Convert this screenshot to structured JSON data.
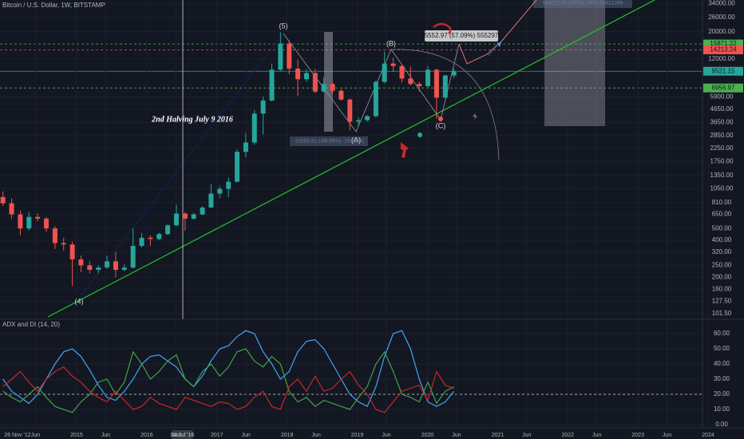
{
  "chart_data": [
    {
      "type": "candlestick",
      "title": "Bitcoin / U.S. Dollar, 1W, BITSTAMP",
      "x": [
        2013.95,
        2014.074,
        2014.197,
        2014.321,
        2014.444,
        2014.568,
        2014.692,
        2014.815,
        2014.939,
        2015.062,
        2015.186,
        2015.31,
        2015.433,
        2015.557,
        2015.68,
        2015.804,
        2015.928,
        2016.051,
        2016.175,
        2016.298,
        2016.422,
        2016.546,
        2016.669,
        2016.793,
        2016.916,
        2017.04,
        2017.164,
        2017.287,
        2017.411,
        2017.534,
        2017.658,
        2017.782,
        2017.905,
        2018.029,
        2018.152,
        2018.276,
        2018.4,
        2018.523,
        2018.647,
        2018.77,
        2018.894,
        2019.018,
        2019.141,
        2019.265,
        2019.388,
        2019.512,
        2019.636,
        2019.759,
        2019.883,
        2020.006,
        2020.13,
        2020.254,
        2020.377
      ],
      "open": [
        900,
        800,
        650,
        500,
        620,
        600,
        500,
        380,
        370,
        280,
        250,
        230,
        240,
        270,
        230,
        240,
        360,
        420,
        410,
        450,
        530,
        660,
        600,
        650,
        740,
        960,
        1050,
        1200,
        2100,
        2500,
        4300,
        5500,
        9800,
        16000,
        10000,
        8200,
        9200,
        6500,
        7500,
        6600,
        5600,
        3700,
        3800,
        4100,
        7800,
        11000,
        10500,
        8300,
        7500,
        7200,
        9800,
        5800,
        8800
      ],
      "high": [
        1000,
        880,
        700,
        680,
        660,
        620,
        520,
        420,
        390,
        300,
        270,
        250,
        300,
        320,
        255,
        500,
        460,
        440,
        460,
        540,
        780,
        680,
        670,
        760,
        1150,
        1100,
        1300,
        2200,
        3000,
        4600,
        5900,
        11000,
        19800,
        17000,
        11800,
        9900,
        9900,
        8500,
        7700,
        6800,
        5700,
        4000,
        4200,
        8000,
        13800,
        12300,
        10600,
        10400,
        7800,
        10500,
        10000,
        8900,
        10000
      ],
      "low": [
        760,
        600,
        440,
        480,
        570,
        470,
        340,
        330,
        170,
        220,
        215,
        215,
        235,
        200,
        225,
        235,
        350,
        360,
        400,
        440,
        520,
        480,
        590,
        640,
        730,
        880,
        900,
        1180,
        1900,
        2400,
        2900,
        5400,
        9600,
        9000,
        6000,
        7800,
        6300,
        6400,
        6200,
        5500,
        3150,
        3400,
        3700,
        4000,
        7600,
        9400,
        7700,
        7300,
        6500,
        6900,
        3900,
        5700,
        8400
      ],
      "close": [
        800,
        650,
        500,
        620,
        600,
        500,
        380,
        370,
        280,
        250,
        230,
        240,
        270,
        230,
        240,
        360,
        420,
        410,
        450,
        530,
        660,
        600,
        650,
        740,
        960,
        1050,
        1200,
        2100,
        2500,
        4300,
        5500,
        9800,
        16000,
        10000,
        8200,
        9200,
        6500,
        7500,
        6600,
        5600,
        3700,
        3800,
        4100,
        7800,
        11000,
        10500,
        8300,
        7500,
        7200,
        9800,
        5800,
        8800,
        9500
      ],
      "up_color": "#26a69a",
      "down_color": "#ef5350",
      "log_scale": true,
      "grid": true,
      "xlim": [
        2013.908,
        2024.511
      ],
      "ylim": [
        91,
        36200
      ],
      "yticks": [
        {
          "value": 34000,
          "label": "34000.00"
        },
        {
          "value": 26000,
          "label": "26000.00"
        },
        {
          "value": 20000,
          "label": "20000.00"
        },
        {
          "value": 12000,
          "label": "12000.00"
        },
        {
          "value": 5900,
          "label": "5900.00"
        },
        {
          "value": 4650,
          "label": "4650.00"
        },
        {
          "value": 3650,
          "label": "3650.00"
        },
        {
          "value": 2850,
          "label": "2850.00"
        },
        {
          "value": 2250,
          "label": "2250.00"
        },
        {
          "value": 1750,
          "label": "1750.00"
        },
        {
          "value": 1350,
          "label": "1350.00"
        },
        {
          "value": 1050,
          "label": "1050.00"
        },
        {
          "value": 810,
          "label": "810.00"
        },
        {
          "value": 650,
          "label": "650.00"
        },
        {
          "value": 500,
          "label": "500.00"
        },
        {
          "value": 400,
          "label": "400.00"
        },
        {
          "value": 320,
          "label": "320.00"
        },
        {
          "value": 250,
          "label": "250.00"
        },
        {
          "value": 200,
          "label": "200.00"
        },
        {
          "value": 160,
          "label": "160.00"
        },
        {
          "value": 127.5,
          "label": "127.50"
        },
        {
          "value": 101.5,
          "label": "101.50"
        }
      ],
      "price_lines": [
        {
          "value": 15871.22,
          "label": "15871.22",
          "color": "#4caf50",
          "dashed": true
        },
        {
          "value": 14213.24,
          "label": "14213.24",
          "color": "#ef5350",
          "dashed": true
        },
        {
          "value": 9521.15,
          "label": "9521.15",
          "color": "#26a69a",
          "dashed": false
        },
        {
          "value": 6956.97,
          "label": "6956.97",
          "color": "#4caf50",
          "dashed": true
        }
      ],
      "crosshair_x": {
        "value": 2016.507,
        "label": "04 Jul '16"
      },
      "start_date_label": "26 Nov '12",
      "annotations": [
        "(5)",
        "(B)",
        "(A)",
        "(C)",
        "(4)",
        "2nd Halving July 9 2016",
        "5552.97 (57.09%) 555297",
        "-10263.91 (-68.89%) -1026391",
        "994212.66 (26792.29%) 99421266"
      ]
    },
    {
      "type": "line",
      "title": "ADX and DI (14, 20)",
      "x": [
        2013.95,
        2014.074,
        2014.197,
        2014.321,
        2014.444,
        2014.568,
        2014.692,
        2014.815,
        2014.939,
        2015.062,
        2015.186,
        2015.31,
        2015.433,
        2015.557,
        2015.68,
        2015.804,
        2015.928,
        2016.051,
        2016.175,
        2016.298,
        2016.422,
        2016.546,
        2016.669,
        2016.793,
        2016.916,
        2017.04,
        2017.164,
        2017.287,
        2017.411,
        2017.534,
        2017.658,
        2017.782,
        2017.905,
        2018.029,
        2018.152,
        2018.276,
        2018.4,
        2018.523,
        2018.647,
        2018.77,
        2018.894,
        2019.018,
        2019.141,
        2019.265,
        2019.388,
        2019.512,
        2019.636,
        2019.759,
        2019.883,
        2020.006,
        2020.13,
        2020.254,
        2020.377
      ],
      "series": [
        {
          "color": "#42a5f5",
          "values": [
            30,
            22,
            18,
            14,
            20,
            30,
            40,
            48,
            50,
            45,
            36,
            26,
            18,
            16,
            22,
            30,
            40,
            45,
            46,
            42,
            38,
            30,
            25,
            32,
            42,
            50,
            52,
            58,
            62,
            60,
            48,
            40,
            30,
            35,
            48,
            55,
            56,
            50,
            40,
            30,
            20,
            15,
            12,
            25,
            45,
            60,
            62,
            50,
            30,
            15,
            12,
            15,
            22
          ]
        },
        {
          "color": "#43a047",
          "values": [
            22,
            18,
            15,
            20,
            25,
            18,
            12,
            10,
            8,
            15,
            20,
            28,
            30,
            20,
            28,
            48,
            40,
            30,
            35,
            42,
            46,
            30,
            25,
            35,
            40,
            32,
            38,
            48,
            50,
            42,
            38,
            45,
            40,
            22,
            15,
            18,
            12,
            16,
            14,
            12,
            10,
            18,
            25,
            40,
            48,
            35,
            20,
            18,
            15,
            28,
            14,
            22,
            25
          ]
        },
        {
          "color": "#c62828",
          "values": [
            25,
            30,
            35,
            28,
            22,
            30,
            35,
            38,
            32,
            28,
            22,
            18,
            15,
            22,
            16,
            10,
            12,
            18,
            14,
            12,
            10,
            18,
            16,
            14,
            12,
            15,
            14,
            10,
            12,
            18,
            22,
            12,
            10,
            25,
            30,
            22,
            32,
            22,
            24,
            30,
            35,
            26,
            20,
            10,
            8,
            15,
            22,
            24,
            26,
            16,
            35,
            26,
            24
          ]
        }
      ],
      "threshold": 20,
      "xlim": [
        2013.908,
        2024.511
      ],
      "ylim": [
        -1.6,
        69.5
      ],
      "yticks": [
        {
          "value": 60,
          "label": "60.00"
        },
        {
          "value": 50,
          "label": "50.00"
        },
        {
          "value": 40,
          "label": "40.00"
        },
        {
          "value": 30,
          "label": "30.00"
        },
        {
          "value": 20,
          "label": "20.00"
        },
        {
          "value": 10,
          "label": "10.00"
        },
        {
          "value": 0,
          "label": "0.00"
        }
      ],
      "xticks": [
        {
          "value": 2014.414,
          "label": "Jun"
        },
        2015,
        {
          "value": 2015.414,
          "label": "Jun"
        },
        2016,
        {
          "value": 2016.414,
          "label": "Jun"
        },
        2017,
        {
          "value": 2017.414,
          "label": "Jun"
        },
        2018,
        {
          "value": 2018.414,
          "label": "Jun"
        },
        2019,
        {
          "value": 2019.414,
          "label": "Jun"
        },
        2020,
        {
          "value": 2020.414,
          "label": "Jun"
        },
        2021,
        {
          "value": 2021.414,
          "label": "Jun"
        },
        2022,
        {
          "value": 2022.414,
          "label": "Jun"
        },
        2023,
        {
          "value": 2023.414,
          "label": "Jun"
        },
        2024
      ]
    }
  ]
}
